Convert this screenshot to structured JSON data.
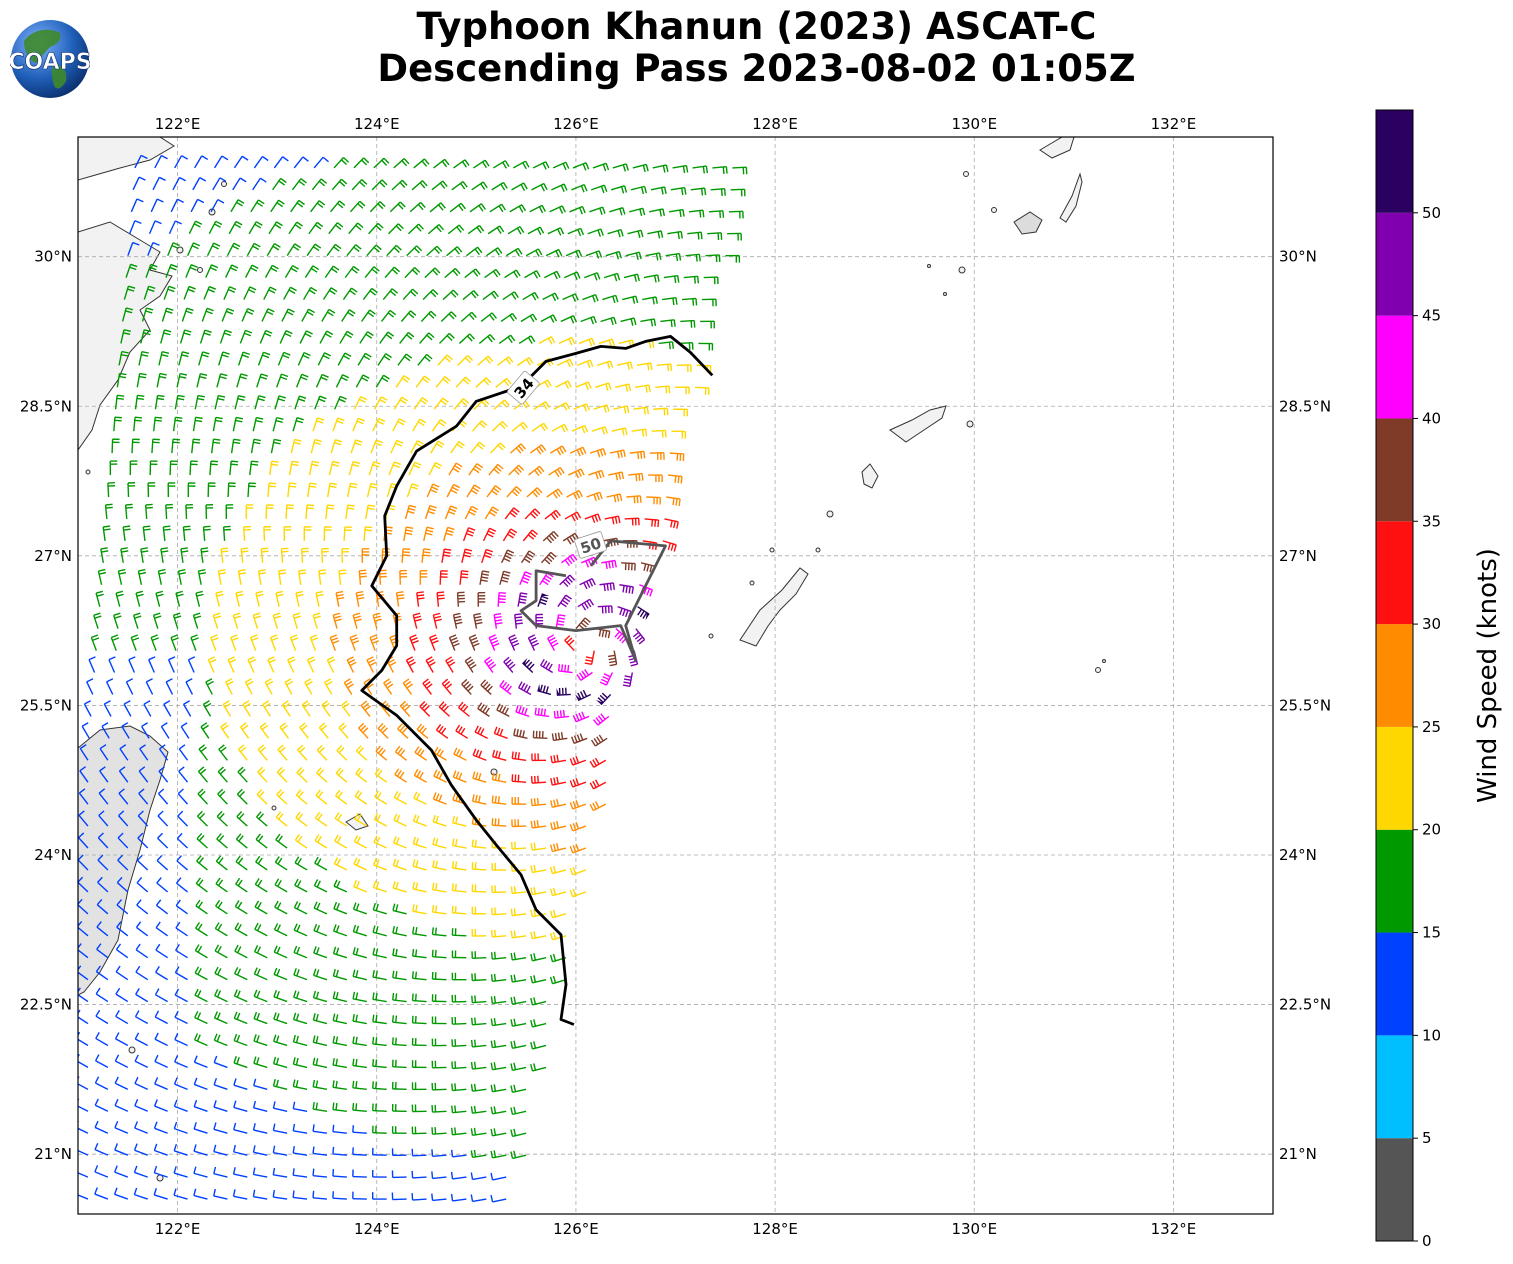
{
  "title": {
    "line1": "Typhoon Khanun (2023) ASCAT-C",
    "line2": "Descending Pass 2023-08-02 01:05Z"
  },
  "logo": {
    "text": "COAPS"
  },
  "map": {
    "lon_range": [
      121.0,
      133.0
    ],
    "lat_range": [
      20.4,
      31.2
    ],
    "lon_ticks": [
      {
        "value": 122,
        "label": "122°E"
      },
      {
        "value": 124,
        "label": "124°E"
      },
      {
        "value": 126,
        "label": "126°E"
      },
      {
        "value": 128,
        "label": "128°E"
      },
      {
        "value": 130,
        "label": "130°E"
      },
      {
        "value": 132,
        "label": "132°E"
      }
    ],
    "lat_ticks": [
      {
        "value": 30,
        "label": "30°N"
      },
      {
        "value": 28.5,
        "label": "28.5°N"
      },
      {
        "value": 27,
        "label": "27°N"
      },
      {
        "value": 25.5,
        "label": "25.5°N"
      },
      {
        "value": 24,
        "label": "24°N"
      },
      {
        "value": 22.5,
        "label": "22.5°N"
      },
      {
        "value": 21,
        "label": "21°N"
      }
    ],
    "grid": true,
    "storm_center": [
      126.1,
      26.1
    ],
    "contours": [
      {
        "label": "34",
        "color": "#000000",
        "points": [
          [
            127.37,
            28.81
          ],
          [
            127.15,
            29.04
          ],
          [
            126.95,
            29.2
          ],
          [
            126.7,
            29.15
          ],
          [
            126.5,
            29.08
          ],
          [
            126.25,
            29.1
          ],
          [
            126.0,
            29.03
          ],
          [
            125.7,
            28.95
          ],
          [
            125.45,
            28.7
          ],
          [
            125.0,
            28.55
          ],
          [
            124.8,
            28.3
          ],
          [
            124.4,
            28.05
          ],
          [
            124.2,
            27.7
          ],
          [
            124.08,
            27.4
          ],
          [
            124.1,
            27.0
          ],
          [
            123.95,
            26.7
          ],
          [
            124.2,
            26.4
          ],
          [
            124.2,
            26.1
          ],
          [
            124.05,
            25.85
          ],
          [
            123.85,
            25.65
          ],
          [
            124.2,
            25.4
          ],
          [
            124.55,
            25.05
          ],
          [
            124.75,
            24.7
          ],
          [
            125.0,
            24.35
          ],
          [
            125.2,
            24.1
          ],
          [
            125.45,
            23.8
          ],
          [
            125.6,
            23.45
          ],
          [
            125.85,
            23.2
          ],
          [
            125.9,
            22.7
          ],
          [
            125.85,
            22.35
          ],
          [
            125.98,
            22.3
          ]
        ]
      },
      {
        "label": "50",
        "color": "#555555",
        "points": [
          [
            126.15,
            26.9
          ],
          [
            126.35,
            27.15
          ],
          [
            126.9,
            27.1
          ],
          [
            126.5,
            26.3
          ],
          [
            126.6,
            25.95
          ],
          [
            126.45,
            26.3
          ],
          [
            126.0,
            26.25
          ],
          [
            125.6,
            26.3
          ],
          [
            125.45,
            26.45
          ],
          [
            125.6,
            26.55
          ],
          [
            125.6,
            26.85
          ],
          [
            125.9,
            26.8
          ]
        ]
      }
    ],
    "colorbar": {
      "label": "Wind Speed (knots)",
      "ticks": [
        0,
        5,
        10,
        15,
        20,
        25,
        30,
        35,
        40,
        45,
        50
      ],
      "bins": [
        {
          "min": 0,
          "max": 5,
          "color": "#555555"
        },
        {
          "min": 5,
          "max": 10,
          "color": "#00bfff"
        },
        {
          "min": 10,
          "max": 15,
          "color": "#0040ff"
        },
        {
          "min": 15,
          "max": 20,
          "color": "#009900"
        },
        {
          "min": 20,
          "max": 25,
          "color": "#ffd700"
        },
        {
          "min": 25,
          "max": 30,
          "color": "#ff8c00"
        },
        {
          "min": 30,
          "max": 35,
          "color": "#ff1010"
        },
        {
          "min": 35,
          "max": 40,
          "color": "#7f3a28"
        },
        {
          "min": 40,
          "max": 45,
          "color": "#ff00ff"
        },
        {
          "min": 45,
          "max": 50,
          "color": "#8000b0"
        },
        {
          "min": 50,
          "max": 55,
          "color": "#2a0060"
        }
      ]
    }
  }
}
